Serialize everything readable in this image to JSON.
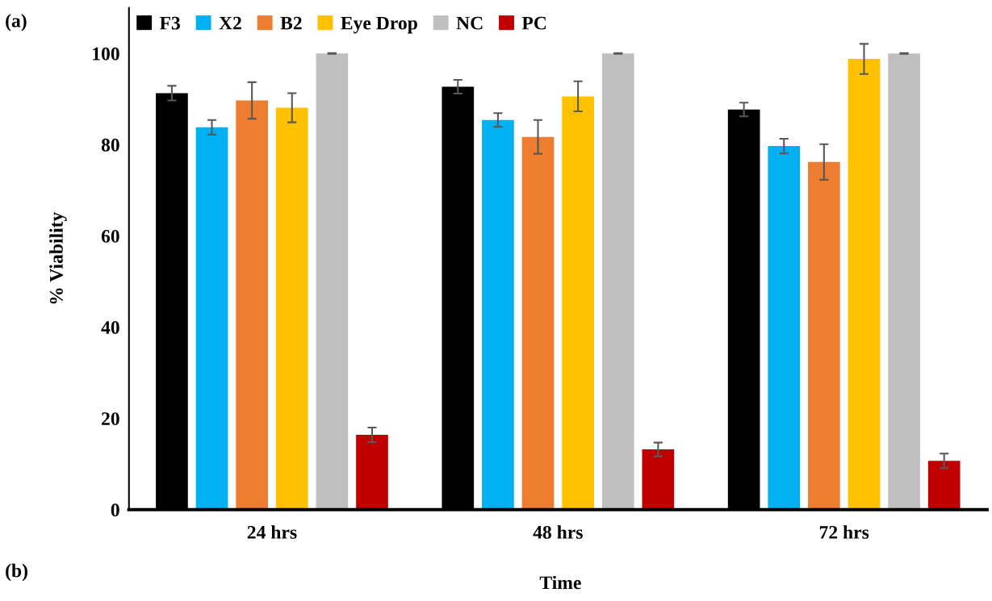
{
  "chart_data": {
    "type": "bar",
    "xlabel": "Time",
    "ylabel": "% Viability",
    "categories": [
      "24 hrs",
      "48 hrs",
      "72 hrs"
    ],
    "series": [
      {
        "name": "F3",
        "color": "#000000",
        "values": [
          91.3,
          92.7,
          87.7
        ],
        "errors": [
          1.6,
          1.5,
          1.5
        ]
      },
      {
        "name": "X2",
        "color": "#00b0f0",
        "values": [
          83.8,
          85.4,
          79.7
        ],
        "errors": [
          1.6,
          1.5,
          1.6
        ]
      },
      {
        "name": "B2",
        "color": "#ed7d31",
        "values": [
          89.7,
          81.7,
          76.2
        ],
        "errors": [
          4.0,
          3.7,
          3.9
        ]
      },
      {
        "name": "Eye Drop",
        "color": "#ffc000",
        "values": [
          88.1,
          90.6,
          98.8
        ],
        "errors": [
          3.2,
          3.3,
          3.3
        ]
      },
      {
        "name": "NC",
        "color": "#bfbfbf",
        "values": [
          100,
          100,
          100
        ],
        "errors": [
          0.1,
          0.1,
          0.1
        ]
      },
      {
        "name": "PC",
        "color": "#c00000",
        "values": [
          16.4,
          13.2,
          10.7
        ],
        "errors": [
          1.6,
          1.5,
          1.6
        ]
      }
    ],
    "ylim": [
      0,
      110
    ],
    "yticks": [
      0,
      20,
      40,
      60,
      80,
      100
    ],
    "grid": false,
    "legend": "top left",
    "annotations": [
      "(a)",
      "(b)"
    ]
  }
}
